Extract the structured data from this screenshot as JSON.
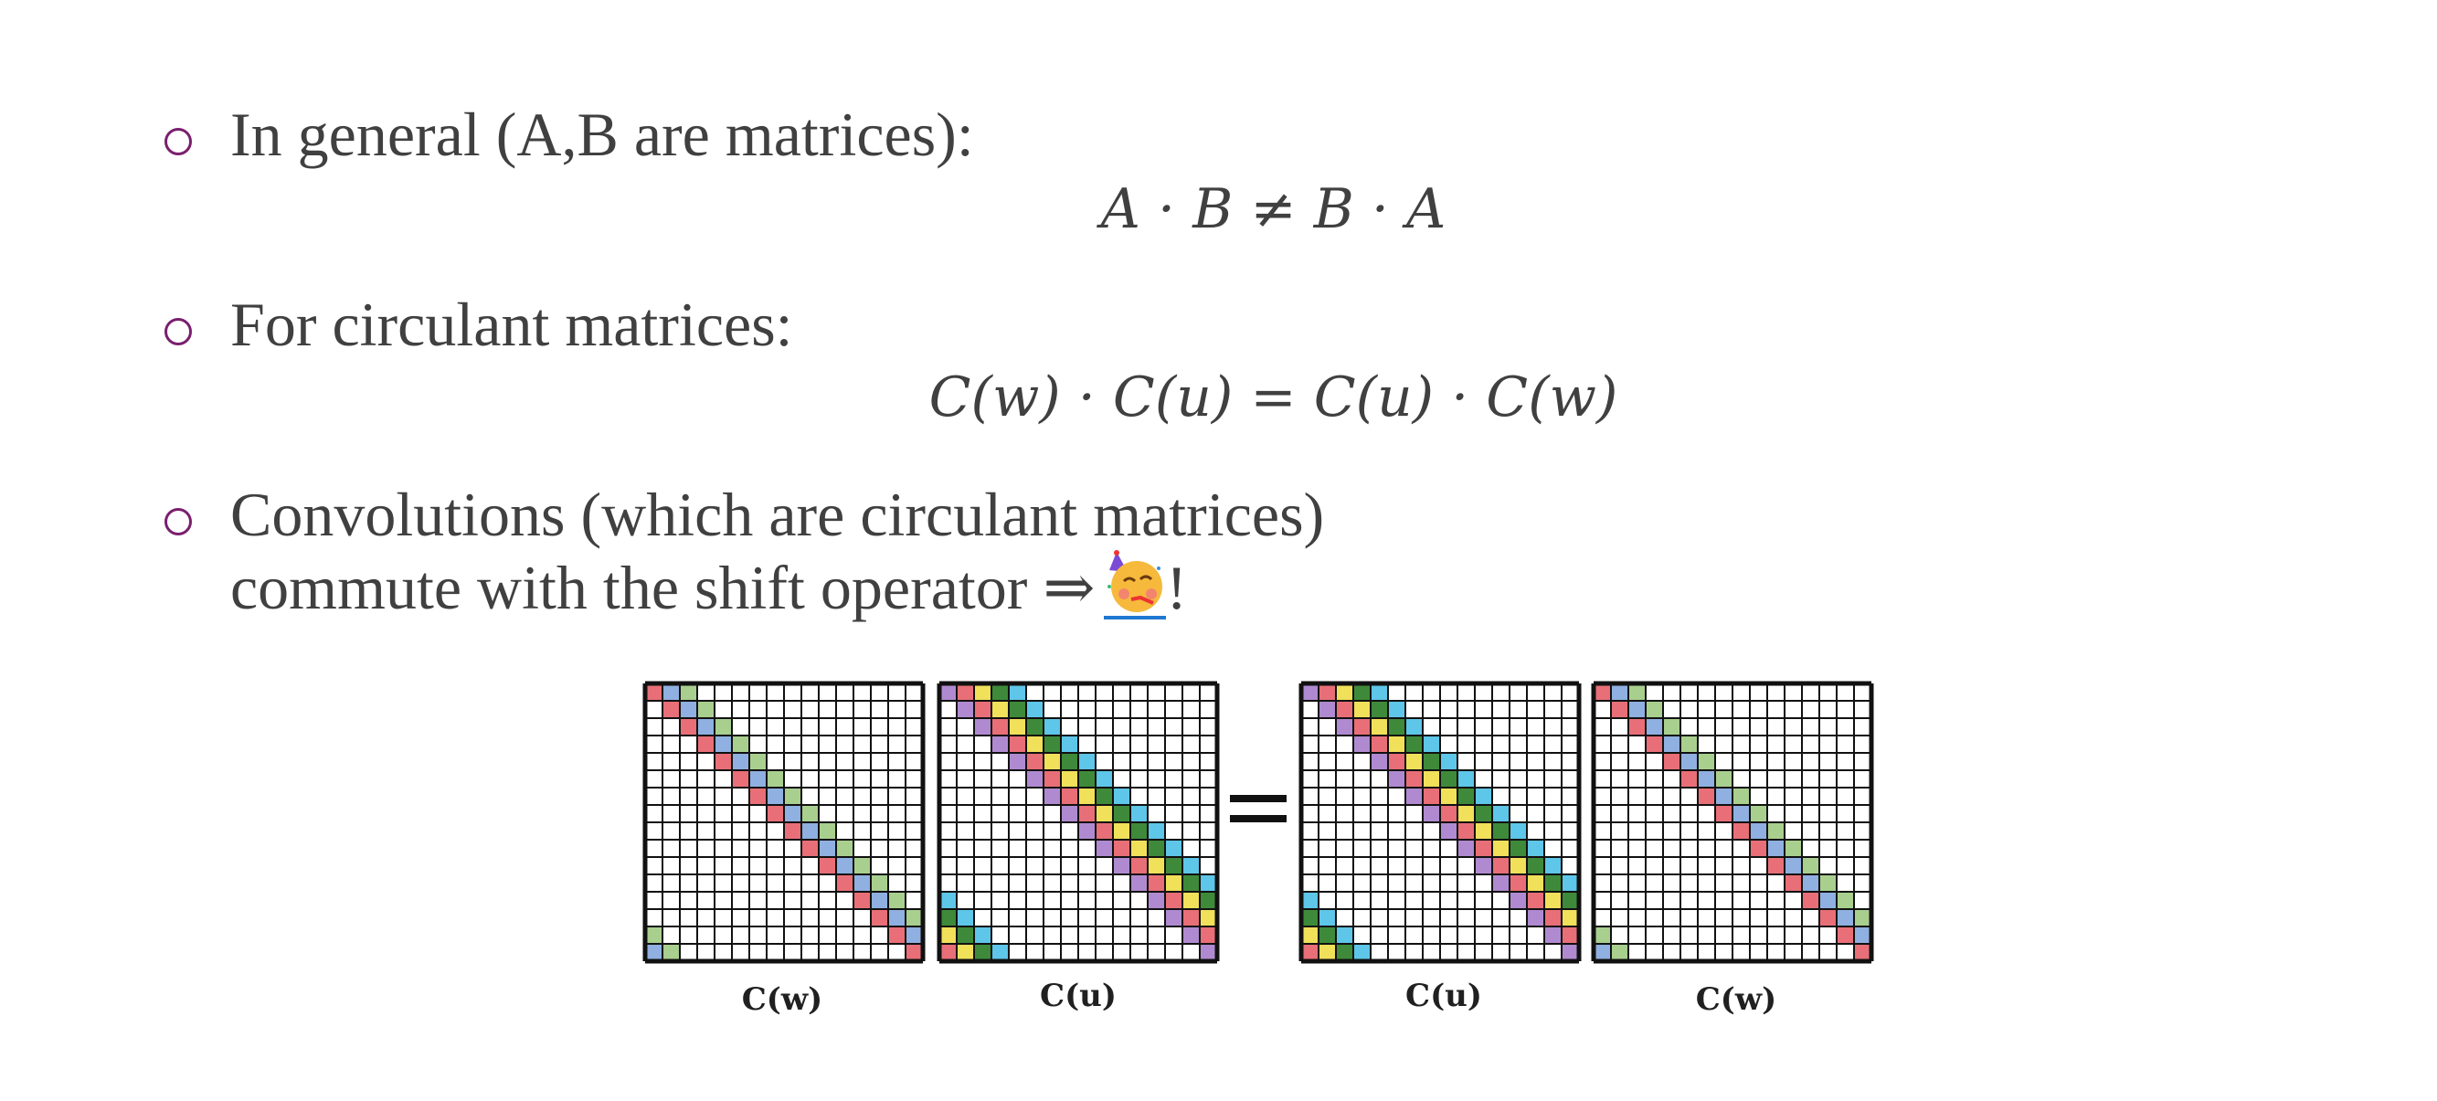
{
  "bullets": [
    {
      "text": "In general (A,B are matrices):"
    },
    {
      "text": "For circulant matrices:"
    },
    {
      "text_line1": "Convolutions (which are circulant matrices)",
      "text_line2": "commute with the shift operator ⇒",
      "suffix": "!"
    }
  ],
  "equations": {
    "eq1": "A · B ≠ B · A",
    "eq2": "C(w) · C(u) = C(u) · C(w)"
  },
  "emoji": {
    "icon": "partying-face-icon"
  },
  "figure": {
    "n": 16,
    "matrices": [
      {
        "label": "C(w)",
        "colors": [
          "#e86f77",
          "#8fb0e0",
          "#a9cf8f"
        ]
      },
      {
        "label": "C(u)",
        "colors": [
          "#b08ad0",
          "#e86f77",
          "#f0e05a",
          "#3e8a3a",
          "#5ec6e8"
        ]
      },
      {
        "label": "C(u)",
        "colors": [
          "#b08ad0",
          "#e86f77",
          "#f0e05a",
          "#3e8a3a",
          "#5ec6e8"
        ]
      },
      {
        "label": "C(w)",
        "colors": [
          "#e86f77",
          "#8fb0e0",
          "#a9cf8f"
        ]
      }
    ]
  }
}
